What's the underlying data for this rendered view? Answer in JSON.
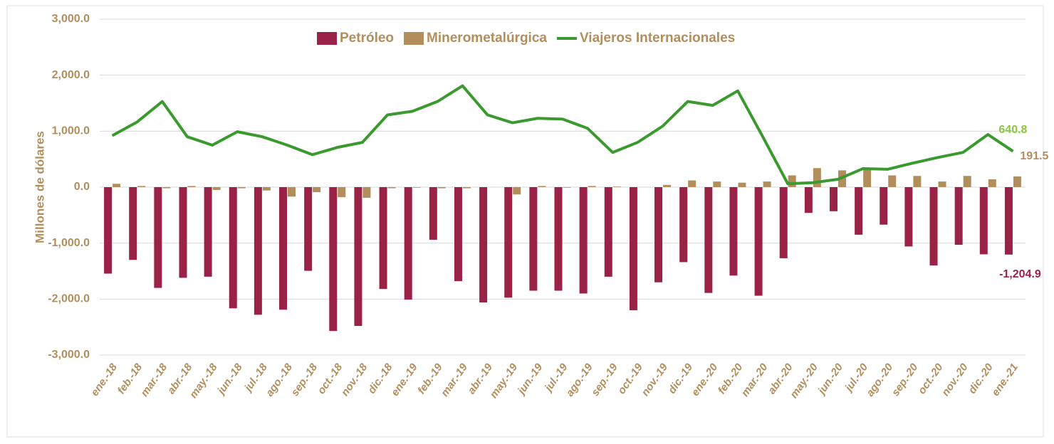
{
  "chart_data": {
    "type": "bar",
    "y_label": "Millones de dólares",
    "categories": [
      "ene.-18",
      "feb.-18",
      "mar.-18",
      "abr.-18",
      "may.-18",
      "jun.-18",
      "jul.-18",
      "ago.-18",
      "sep.-18",
      "oct.-18",
      "nov.-18",
      "dic.-18",
      "ene.-19",
      "feb.-19",
      "mar.-19",
      "abr.-19",
      "may.-19",
      "jun.-19",
      "jul.-19",
      "ago.-19",
      "sep.-19",
      "oct.-19",
      "nov.-19",
      "dic.-19",
      "ene.-20",
      "feb.-20",
      "mar.-20",
      "abr.-20",
      "may.-20",
      "jun.-20",
      "jul.-20",
      "ago.-20",
      "sep.-20",
      "oct.-20",
      "nov.-20",
      "dic.-20",
      "ene.-21"
    ],
    "series": [
      {
        "name": "Petróleo",
        "type": "bar",
        "color": "#9b2247",
        "values": [
          -1545,
          -1300,
          -1800,
          -1620,
          -1600,
          -2165,
          -2280,
          -2190,
          -1495,
          -2570,
          -2480,
          -1820,
          -2010,
          -940,
          -1680,
          -2060,
          -1975,
          -1850,
          -1850,
          -1900,
          -1600,
          -2200,
          -1700,
          -1340,
          -1890,
          -1580,
          -1940,
          -1270,
          -460,
          -430,
          -850,
          -670,
          -1060,
          -1400,
          -1030,
          -1200,
          -1204.9
        ],
        "value_labels": [
          null,
          null,
          null,
          null,
          null,
          null,
          null,
          null,
          null,
          null,
          null,
          null,
          null,
          null,
          null,
          null,
          null,
          null,
          null,
          null,
          null,
          null,
          null,
          null,
          null,
          null,
          null,
          null,
          null,
          null,
          null,
          null,
          null,
          null,
          null,
          null,
          "-1,204.9"
        ]
      },
      {
        "name": "Minerometalúrgica",
        "type": "bar",
        "color": "#b38e5d",
        "values": [
          60,
          20,
          -20,
          20,
          -50,
          -20,
          -60,
          -170,
          -90,
          -180,
          -190,
          -20,
          -10,
          -20,
          -20,
          0,
          -130,
          20,
          -10,
          20,
          10,
          0,
          40,
          120,
          100,
          80,
          100,
          210,
          340,
          300,
          320,
          210,
          200,
          100,
          200,
          140,
          191.5
        ],
        "value_labels": [
          null,
          null,
          null,
          null,
          null,
          null,
          null,
          null,
          null,
          null,
          null,
          null,
          null,
          null,
          null,
          null,
          null,
          null,
          null,
          null,
          null,
          null,
          null,
          null,
          null,
          null,
          null,
          null,
          null,
          null,
          null,
          null,
          null,
          null,
          null,
          null,
          "191.5"
        ]
      },
      {
        "name": "Viajeros Internacionales",
        "type": "line",
        "color": "#3a9a2e",
        "values": [
          920,
          1165,
          1530,
          900,
          750,
          990,
          900,
          750,
          580,
          710,
          800,
          1290,
          1355,
          1530,
          1810,
          1290,
          1150,
          1230,
          1215,
          1050,
          620,
          800,
          1090,
          1530,
          1460,
          1720,
          900,
          60,
          80,
          140,
          330,
          320,
          430,
          530,
          620,
          940,
          640.8
        ],
        "value_labels": [
          null,
          null,
          null,
          null,
          null,
          null,
          null,
          null,
          null,
          null,
          null,
          null,
          null,
          null,
          null,
          null,
          null,
          null,
          null,
          null,
          null,
          null,
          null,
          null,
          null,
          null,
          null,
          null,
          null,
          null,
          null,
          null,
          null,
          null,
          null,
          null,
          "640.8"
        ]
      }
    ],
    "ylim": [
      -3000,
      3000
    ],
    "yticks": [
      {
        "value": -3000,
        "label": "-3,000.0"
      },
      {
        "value": -2000,
        "label": "-2,000.0"
      },
      {
        "value": -1000,
        "label": "-1,000.0"
      },
      {
        "value": 0,
        "label": "0.0"
      },
      {
        "value": 1000,
        "label": "1,000.0"
      },
      {
        "value": 2000,
        "label": "2,000.0"
      },
      {
        "value": 3000,
        "label": "3,000.0"
      }
    ],
    "grid": true,
    "legend": "top"
  }
}
